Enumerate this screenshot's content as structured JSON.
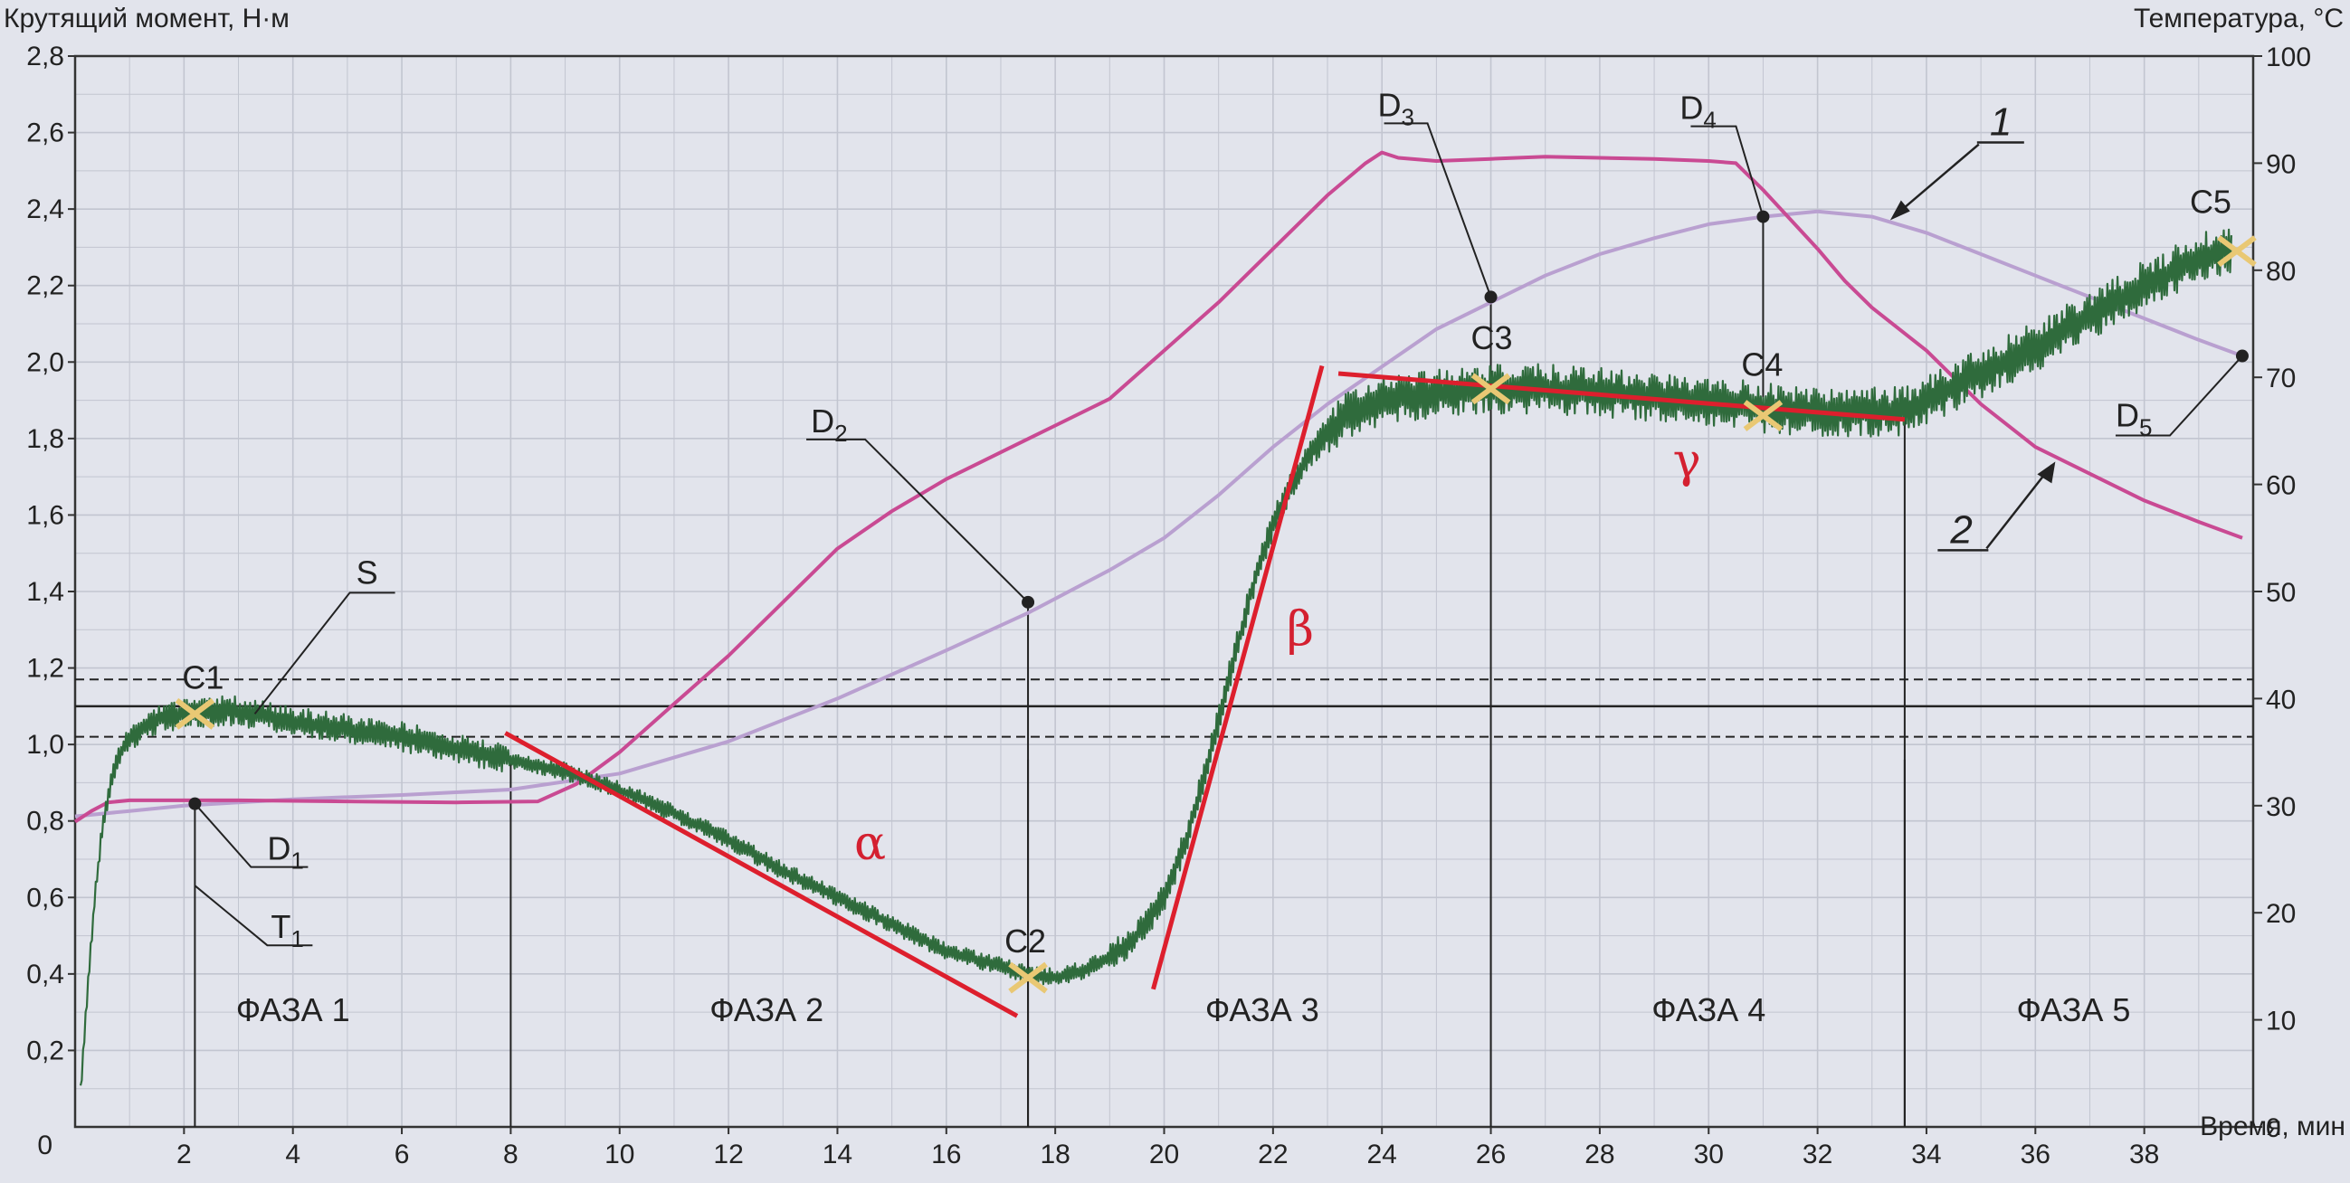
{
  "chart_data": {
    "type": "line",
    "y_left": {
      "title": "Крутящий момент, Н·м",
      "range": [
        0,
        2.8
      ],
      "ticks": [
        "0,2",
        "0,4",
        "0,6",
        "0,8",
        "1,0",
        "1,2",
        "1,4",
        "1,6",
        "1,8",
        "2,0",
        "2,2",
        "2,4",
        "2,6",
        "2,8"
      ],
      "values": [
        0.2,
        0.4,
        0.6,
        0.8,
        1.0,
        1.2,
        1.4,
        1.6,
        1.8,
        2.0,
        2.2,
        2.4,
        2.6,
        2.8
      ]
    },
    "y_right": {
      "title": "Температура, °C",
      "range": [
        0,
        100
      ],
      "ticks": [
        "0",
        "10",
        "20",
        "30",
        "40",
        "50",
        "60",
        "70",
        "80",
        "90",
        "100"
      ],
      "values": [
        0,
        10,
        20,
        30,
        40,
        50,
        60,
        70,
        80,
        90,
        100
      ]
    },
    "x_axis": {
      "title": "Время, мин",
      "range": [
        0,
        40
      ],
      "ticks": [
        "2",
        "4",
        "6",
        "8",
        "10",
        "12",
        "14",
        "16",
        "18",
        "20",
        "22",
        "24",
        "26",
        "28",
        "30",
        "32",
        "34",
        "36",
        "38"
      ],
      "values": [
        2,
        4,
        6,
        8,
        10,
        12,
        14,
        16,
        18,
        20,
        22,
        24,
        26,
        28,
        30,
        32,
        34,
        36,
        38
      ]
    },
    "origin_label": "0",
    "grid": true,
    "series": [
      {
        "color": "#2f6b3c",
        "axis": "left",
        "points": [
          [
            0.1,
            0.1
          ],
          [
            0.2,
            0.3
          ],
          [
            0.35,
            0.58
          ],
          [
            0.5,
            0.78
          ],
          [
            0.7,
            0.93
          ],
          [
            0.9,
            1.0
          ],
          [
            1.2,
            1.04
          ],
          [
            1.6,
            1.07
          ],
          [
            2.0,
            1.08
          ],
          [
            2.3,
            1.08
          ],
          [
            2.8,
            1.09
          ],
          [
            3.3,
            1.08
          ],
          [
            4,
            1.06
          ],
          [
            5,
            1.04
          ],
          [
            6,
            1.02
          ],
          [
            7,
            0.99
          ],
          [
            8,
            0.96
          ],
          [
            9,
            0.93
          ],
          [
            10,
            0.88
          ],
          [
            11,
            0.82
          ],
          [
            12,
            0.75
          ],
          [
            13,
            0.67
          ],
          [
            14,
            0.6
          ],
          [
            15,
            0.53
          ],
          [
            16,
            0.46
          ],
          [
            17,
            0.42
          ],
          [
            17.5,
            0.4
          ],
          [
            18,
            0.39
          ],
          [
            18.5,
            0.41
          ],
          [
            19,
            0.44
          ],
          [
            19.5,
            0.5
          ],
          [
            20,
            0.6
          ],
          [
            20.4,
            0.75
          ],
          [
            20.8,
            0.95
          ],
          [
            21.2,
            1.18
          ],
          [
            21.6,
            1.4
          ],
          [
            22,
            1.58
          ],
          [
            22.5,
            1.72
          ],
          [
            23,
            1.82
          ],
          [
            23.5,
            1.87
          ],
          [
            24,
            1.9
          ],
          [
            25,
            1.92
          ],
          [
            26,
            1.93
          ],
          [
            27,
            1.93
          ],
          [
            28,
            1.92
          ],
          [
            29,
            1.91
          ],
          [
            30,
            1.9
          ],
          [
            31,
            1.88
          ],
          [
            32,
            1.87
          ],
          [
            33,
            1.87
          ],
          [
            33.6,
            1.87
          ],
          [
            34,
            1.9
          ],
          [
            35,
            1.97
          ],
          [
            36,
            2.04
          ],
          [
            37,
            2.12
          ],
          [
            38,
            2.2
          ],
          [
            39,
            2.27
          ],
          [
            39.6,
            2.3
          ]
        ]
      },
      {
        "color": "#b9a0d0",
        "axis": "right",
        "points": [
          [
            0,
            29
          ],
          [
            1,
            29.5
          ],
          [
            2,
            30
          ],
          [
            3,
            30.3
          ],
          [
            4,
            30.6
          ],
          [
            6,
            31
          ],
          [
            8,
            31.5
          ],
          [
            10,
            33
          ],
          [
            12,
            36
          ],
          [
            14,
            40
          ],
          [
            16,
            44.5
          ],
          [
            17.5,
            48
          ],
          [
            19,
            52
          ],
          [
            20,
            55
          ],
          [
            21,
            59
          ],
          [
            22,
            63.5
          ],
          [
            23,
            67.5
          ],
          [
            24,
            71
          ],
          [
            25,
            74.5
          ],
          [
            26,
            77
          ],
          [
            27,
            79.5
          ],
          [
            28,
            81.5
          ],
          [
            29,
            83
          ],
          [
            30,
            84.3
          ],
          [
            31,
            85
          ],
          [
            32,
            85.5
          ],
          [
            33,
            85
          ],
          [
            34,
            83.5
          ],
          [
            35,
            81.5
          ],
          [
            36,
            79.5
          ],
          [
            37,
            77.5
          ],
          [
            38,
            75.5
          ],
          [
            39,
            73.5
          ],
          [
            39.8,
            72
          ]
        ]
      },
      {
        "color": "#c94a93",
        "axis": "right",
        "points": [
          [
            0,
            28.5
          ],
          [
            0.3,
            29.5
          ],
          [
            0.6,
            30.3
          ],
          [
            1,
            30.5
          ],
          [
            3,
            30.5
          ],
          [
            5,
            30.4
          ],
          [
            7,
            30.3
          ],
          [
            8.5,
            30.4
          ],
          [
            9.2,
            32
          ],
          [
            10,
            35
          ],
          [
            11,
            39.5
          ],
          [
            12,
            44
          ],
          [
            13,
            49
          ],
          [
            14,
            54
          ],
          [
            15,
            57.5
          ],
          [
            16,
            60.5
          ],
          [
            17,
            63
          ],
          [
            18,
            65.5
          ],
          [
            19,
            68
          ],
          [
            20,
            72.5
          ],
          [
            21,
            77
          ],
          [
            22,
            82
          ],
          [
            23,
            87
          ],
          [
            23.7,
            90
          ],
          [
            24,
            91
          ],
          [
            24.3,
            90.5
          ],
          [
            25,
            90.2
          ],
          [
            26,
            90.4
          ],
          [
            27,
            90.6
          ],
          [
            28,
            90.5
          ],
          [
            29,
            90.4
          ],
          [
            30,
            90.2
          ],
          [
            30.5,
            90
          ],
          [
            31,
            87.5
          ],
          [
            32,
            82
          ],
          [
            32.5,
            79
          ],
          [
            33,
            76.5
          ],
          [
            34,
            72.5
          ],
          [
            35,
            67.5
          ],
          [
            36,
            63.5
          ],
          [
            37,
            61
          ],
          [
            38,
            58.5
          ],
          [
            39,
            56.5
          ],
          [
            39.8,
            55
          ]
        ]
      }
    ],
    "curve_labels": [
      "1",
      "2"
    ],
    "points": [
      {
        "label": "C1",
        "x": 2.2,
        "y": 1.08
      },
      {
        "label": "C2",
        "x": 17.5,
        "y": 0.39
      },
      {
        "label": "C3",
        "x": 26.0,
        "y": 1.93
      },
      {
        "label": "C4",
        "x": 31.0,
        "y": 1.86
      },
      {
        "label": "C5",
        "x": 39.7,
        "y": 2.29
      }
    ],
    "temp_markers": [
      {
        "label": "D",
        "sub": "1",
        "x": 2.2,
        "y_temp": 30.3
      },
      {
        "label": "D",
        "sub": "2",
        "x": 17.5,
        "y_temp": 49
      },
      {
        "label": "D",
        "sub": "3",
        "x": 26.0,
        "y_temp": 77.5
      },
      {
        "label": "D",
        "sub": "4",
        "x": 31.0,
        "y_temp": 85
      },
      {
        "label": "D",
        "sub": "5",
        "x": 39.8,
        "y_temp": 72
      }
    ],
    "tangents": [
      {
        "label": "α",
        "x1": 7.9,
        "y1": 1.03,
        "x2": 17.3,
        "y2": 0.29
      },
      {
        "label": "β",
        "x1": 19.8,
        "y1": 0.36,
        "x2": 22.9,
        "y2": 1.99
      },
      {
        "label": "γ",
        "x1": 23.2,
        "y1": 1.97,
        "x2": 33.6,
        "y2": 1.85
      }
    ],
    "s_band": {
      "label": "S",
      "center": 1.1,
      "upper": 1.17,
      "lower": 1.02
    },
    "t1_label": {
      "label": "T",
      "sub": "1"
    },
    "phase_dividers": [
      8.0,
      17.5,
      26.0,
      33.6
    ],
    "phases": [
      {
        "label": "ФАЗА 1",
        "x": 4.0
      },
      {
        "label": "ФАЗА 2",
        "x": 12.7
      },
      {
        "label": "ФАЗА 3",
        "x": 21.8
      },
      {
        "label": "ФАЗА 4",
        "x": 30.0
      },
      {
        "label": "ФАЗА 5",
        "x": 36.7
      }
    ]
  }
}
